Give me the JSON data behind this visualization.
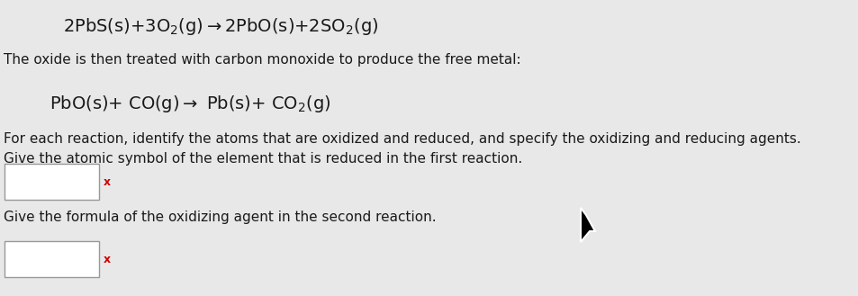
{
  "bg_color": "#e8e8e8",
  "line1": "2PbS(s)+3O$_2$(g)➒2PbO(s)+2SO$_2$(g)",
  "line2": "The oxide is then treated with carbon monoxide to produce the free metal:",
  "line3": "PbO(s)+ CO(g)→ Pb(s)+ CO$_2$(g)",
  "line4": "For each reaction, identify the atoms that are oxidized and reduced, and specify the oxidizing and reducing agents.",
  "line5": "Give the atomic symbol of the element that is reduced in the first reaction.",
  "line6": "Give the formula of the oxidizing agent in the second reaction.",
  "x_mark_color": "#cc0000",
  "text_color": "#1a1a1a",
  "font_size_eq": 14,
  "font_size_body": 11,
  "font_size_eq2": 14
}
